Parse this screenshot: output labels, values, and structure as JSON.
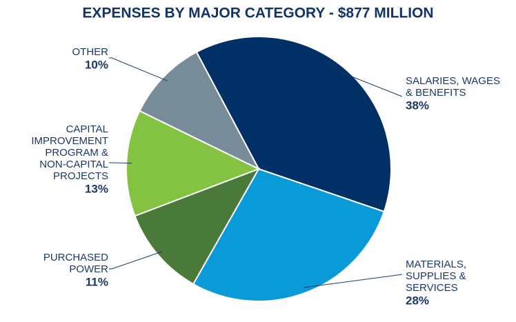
{
  "chart_data": {
    "type": "pie",
    "title": "EXPENSES BY MAJOR CATEGORY - $877 MILLION",
    "categories": [
      "SALARIES, WAGES\n& BENEFITS",
      "MATERIALS,\nSUPPLIES &\nSERVICES",
      "PURCHASED\nPOWER",
      "CAPITAL\nIMPROVEMENT\nPROGRAM &\nNON-CAPITAL\nPROJECTS",
      "OTHER"
    ],
    "values": [
      38,
      28,
      11,
      13,
      10
    ],
    "value_labels": [
      "38%",
      "28%",
      "11%",
      "13%",
      "10%"
    ],
    "colors": [
      "#003066",
      "#0a9ad7",
      "#4a7a3a",
      "#84c341",
      "#788b99"
    ]
  }
}
